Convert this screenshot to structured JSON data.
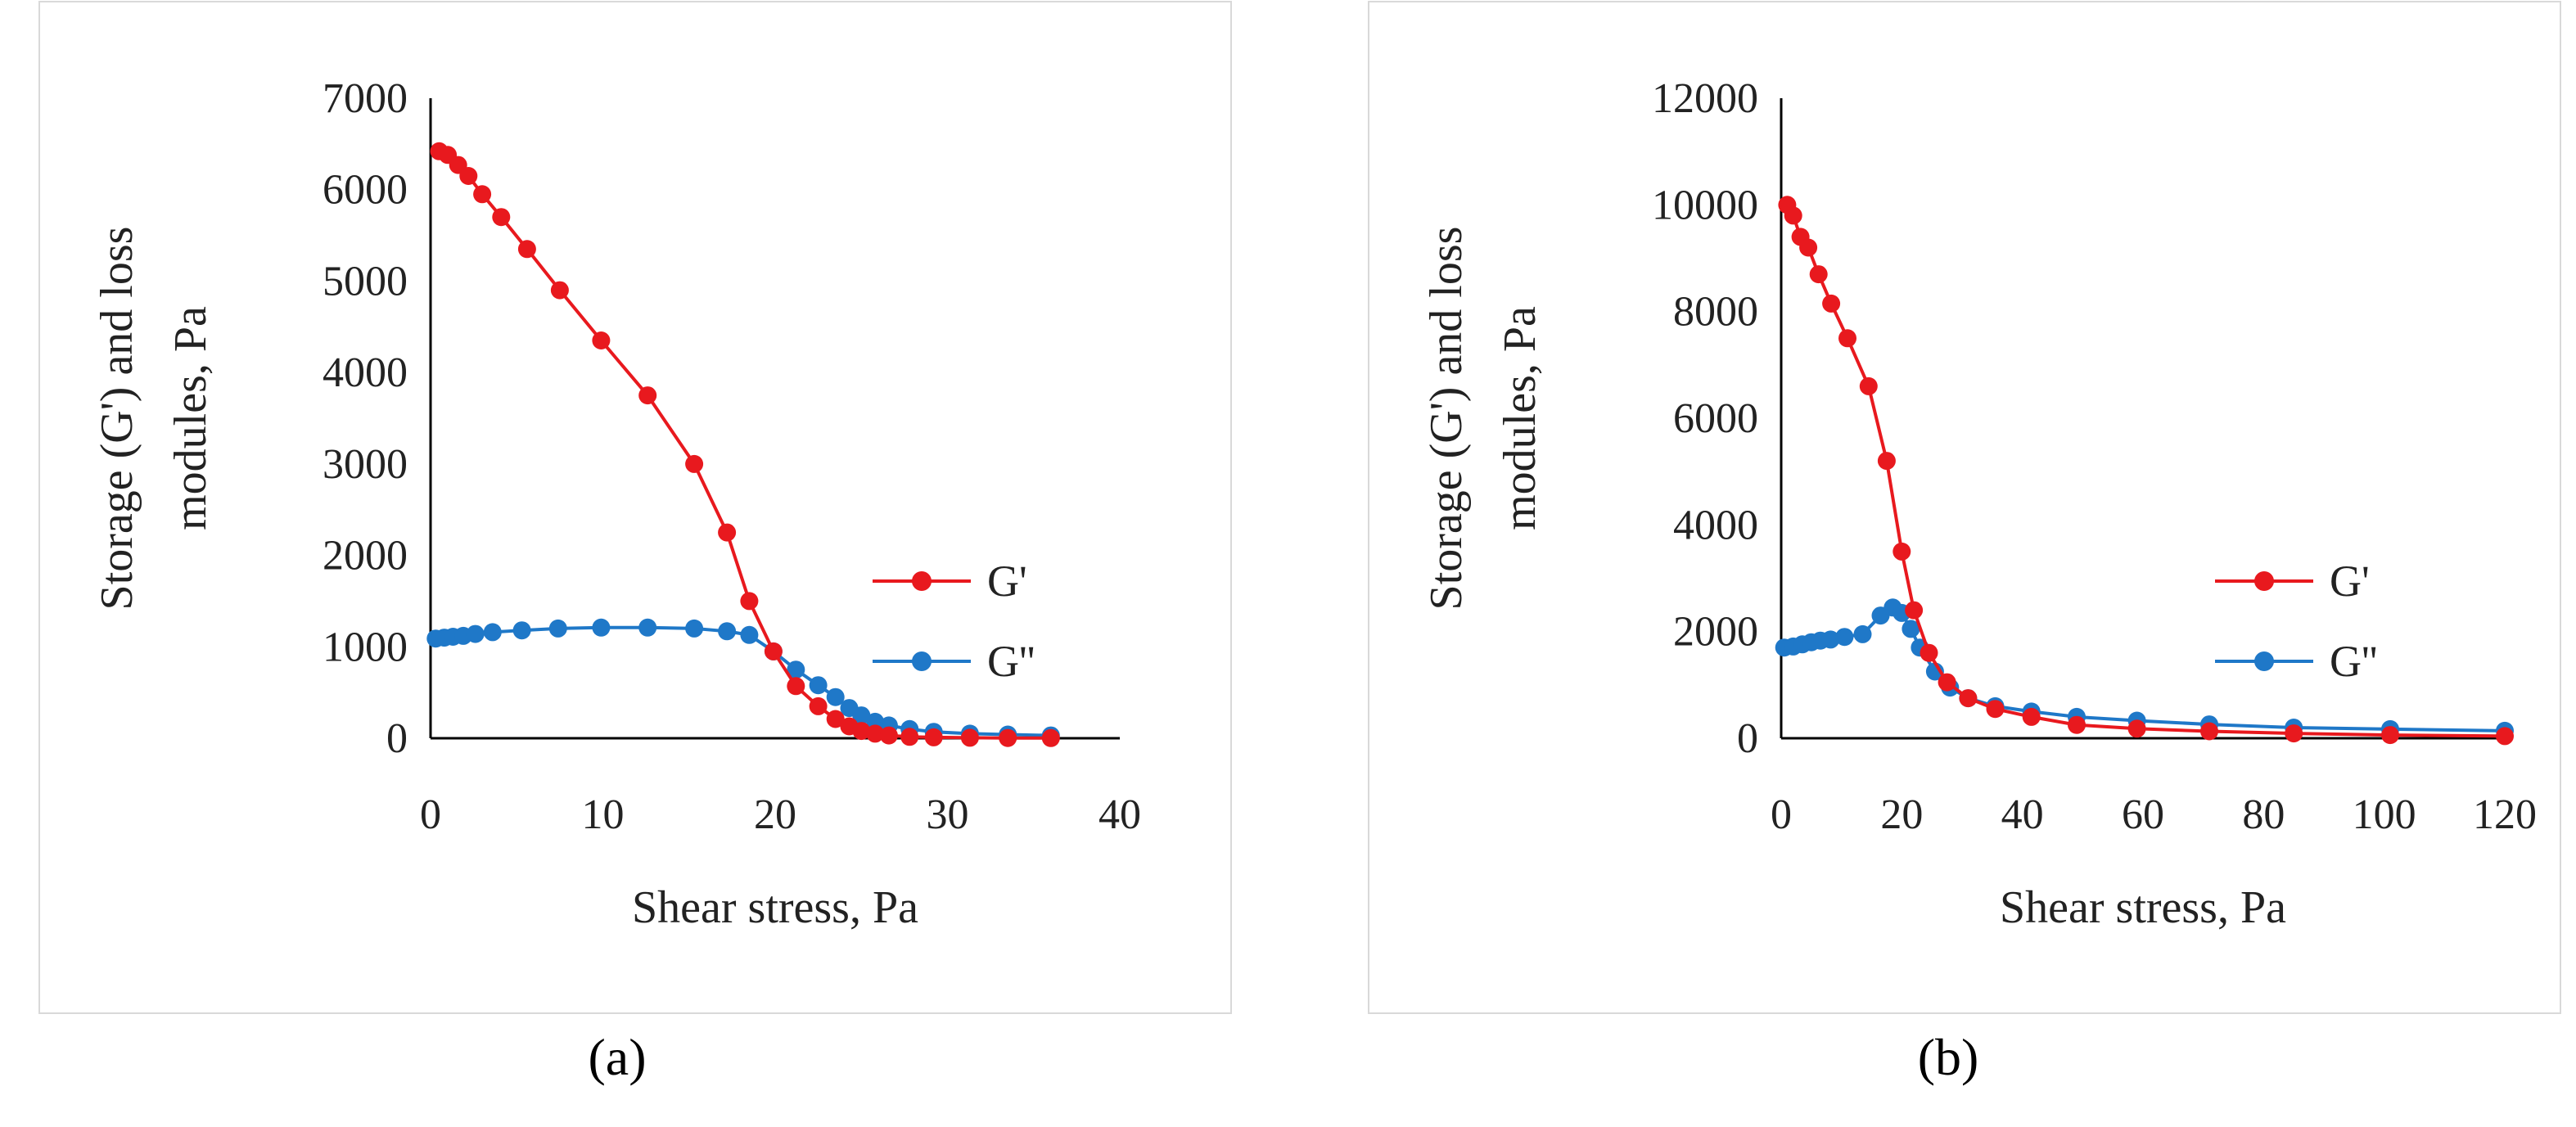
{
  "chart_data": [
    {
      "type": "line",
      "title": "",
      "xlabel": "Shear stress, Pa",
      "ylabel": [
        "Storage (G') and loss",
        "modules, Pa"
      ],
      "xlim": [
        0,
        40
      ],
      "ylim": [
        0,
        7000
      ],
      "xticks": [
        0,
        10,
        20,
        30,
        40
      ],
      "yticks": [
        0,
        1000,
        2000,
        3000,
        4000,
        5000,
        6000,
        7000
      ],
      "grid": false,
      "legend_position": "right",
      "series": [
        {
          "name": "G'",
          "color": "#e8191e",
          "x": [
            0.5,
            1.0,
            1.6,
            2.2,
            3.0,
            4.1,
            5.6,
            7.5,
            9.9,
            12.6,
            15.3,
            17.2,
            18.5,
            19.9,
            21.2,
            22.5,
            23.5,
            24.3,
            25.0,
            25.8,
            26.6,
            27.8,
            29.2,
            31.3,
            33.5,
            36.0
          ],
          "y": [
            6420,
            6380,
            6270,
            6150,
            5950,
            5700,
            5350,
            4900,
            4350,
            3750,
            3000,
            2250,
            1500,
            950,
            570,
            350,
            210,
            130,
            80,
            50,
            30,
            15,
            10,
            5,
            3,
            2
          ]
        },
        {
          "name": "G''",
          "color": "#1f78c8",
          "x": [
            0.3,
            0.8,
            1.3,
            1.9,
            2.6,
            3.6,
            5.3,
            7.4,
            9.9,
            12.6,
            15.3,
            17.2,
            18.5,
            19.9,
            21.2,
            22.5,
            23.5,
            24.3,
            25.0,
            25.8,
            26.6,
            27.8,
            29.2,
            31.3,
            33.5,
            36.0
          ],
          "y": [
            1090,
            1100,
            1110,
            1120,
            1140,
            1160,
            1180,
            1200,
            1210,
            1210,
            1200,
            1170,
            1130,
            950,
            750,
            580,
            450,
            330,
            250,
            180,
            140,
            100,
            70,
            50,
            40,
            30
          ]
        }
      ]
    },
    {
      "type": "line",
      "title": "",
      "xlabel": "Shear stress, Pa",
      "ylabel": [
        "Storage (G') and loss",
        "modules, Pa"
      ],
      "xlim": [
        0,
        120
      ],
      "ylim": [
        0,
        12000
      ],
      "xticks": [
        0,
        20,
        40,
        60,
        80,
        100,
        120
      ],
      "yticks": [
        0,
        2000,
        4000,
        6000,
        8000,
        10000,
        12000
      ],
      "grid": false,
      "legend_position": "right",
      "series": [
        {
          "name": "G'",
          "color": "#e8191e",
          "x": [
            1.0,
            2.0,
            3.2,
            4.5,
            6.2,
            8.3,
            11.0,
            14.5,
            17.5,
            20.0,
            22.0,
            24.5,
            27.5,
            31.0,
            35.5,
            41.5,
            49.0,
            59.0,
            71.0,
            85.0,
            101.0,
            120.0
          ],
          "y": [
            10000,
            9800,
            9400,
            9200,
            8700,
            8150,
            7500,
            6600,
            5200,
            3500,
            2400,
            1600,
            1050,
            750,
            550,
            400,
            250,
            180,
            130,
            90,
            60,
            40
          ]
        },
        {
          "name": "G''",
          "color": "#1f78c8",
          "x": [
            0.5,
            2.0,
            3.5,
            5.0,
            6.5,
            8.2,
            10.5,
            13.5,
            16.5,
            18.5,
            20.0,
            21.5,
            23.0,
            25.5,
            28.0,
            31.0,
            35.5,
            41.5,
            49.0,
            59.0,
            71.0,
            85.0,
            101.0,
            120.0
          ],
          "y": [
            1700,
            1720,
            1760,
            1800,
            1830,
            1850,
            1900,
            1950,
            2300,
            2450,
            2350,
            2050,
            1700,
            1250,
            950,
            750,
            600,
            500,
            400,
            330,
            260,
            200,
            170,
            140
          ]
        }
      ]
    }
  ],
  "captions": [
    "(a)",
    "(b)"
  ]
}
